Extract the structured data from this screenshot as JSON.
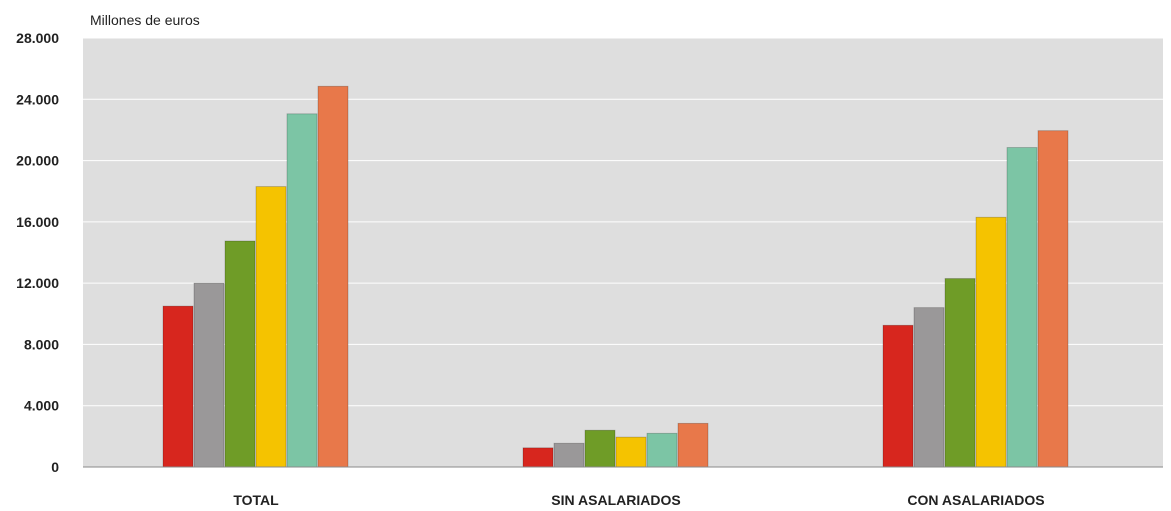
{
  "chart_data": {
    "type": "bar",
    "ylabel": "Millones de euros",
    "ylim": [
      0,
      28000
    ],
    "yticks": [
      0,
      4000,
      8000,
      12000,
      16000,
      20000,
      24000,
      28000
    ],
    "ytick_labels": [
      "0",
      "4.000",
      "8.000",
      "12.000",
      "16.000",
      "20.000",
      "24.000",
      "28.000"
    ],
    "categories": [
      "TOTAL",
      "SIN ASALARIADOS",
      "CON ASALARIADOS"
    ],
    "series": [
      {
        "color": "#d7261e",
        "values": [
          10500,
          1250,
          9250
        ]
      },
      {
        "color": "#9a9899",
        "values": [
          12000,
          1550,
          10400
        ]
      },
      {
        "color": "#6f9c27",
        "values": [
          14750,
          2400,
          12300
        ]
      },
      {
        "color": "#f5c300",
        "values": [
          18300,
          1950,
          16300
        ]
      },
      {
        "color": "#7cc5a5",
        "values": [
          23050,
          2200,
          20850
        ]
      },
      {
        "color": "#e8784a",
        "values": [
          24850,
          2850,
          21950
        ]
      }
    ],
    "grid": true,
    "background": "#dedede"
  }
}
